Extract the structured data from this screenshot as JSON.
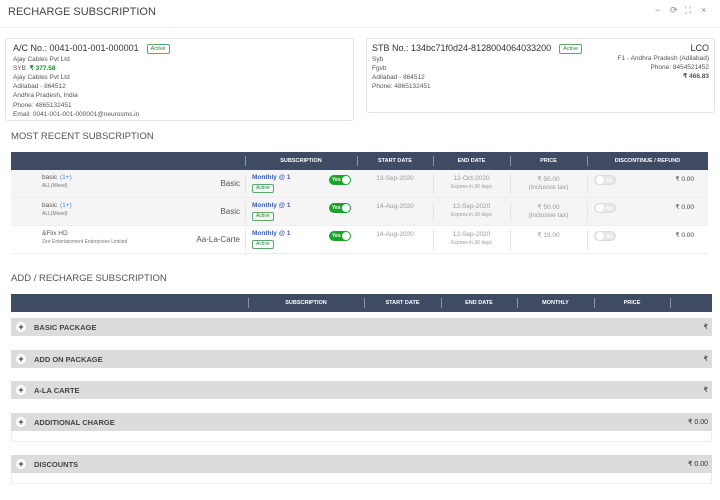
{
  "title": "RECHARGE SUBSCRIPTION",
  "window_controls": {
    "minimize": "−",
    "refresh": "⟳",
    "maximize": "⛶",
    "close": "×"
  },
  "account": {
    "ac_no": "A/C No.: 0041-001-001-000001",
    "status": "Active",
    "name": "Ajay Cables Pvt Ltd",
    "syb_label": "SYB",
    "balance": "₹ 377.58",
    "company": "Ajay Cables Pvt Ltd",
    "city": "Adilabad - 864512",
    "state": "Andhra Pradesh, India",
    "phone": "Phone: 4865132451",
    "email": "Email: 0041-001-001-000001@neurosms.in"
  },
  "stb": {
    "stb_no": "STB No.: 134bc71f0d24-8128004064033200",
    "status": "Active",
    "line1": "Syb",
    "line2": "Fgvb",
    "city": "Adilabad - 864512",
    "phone": "Phone: 4865132451",
    "lco_label": "LCO",
    "lco_name": "F1 - Andhra Pradesh (Adilabad)",
    "lco_phone": "Phone: 8454521452",
    "lco_balance": "₹ 466.83"
  },
  "recent": {
    "heading": "MOST RECENT SUBSCRIPTION",
    "columns": [
      "SUBSCRIPTION",
      "START DATE",
      "END DATE",
      "PRICE",
      "DISCONTINUE / REFUND"
    ],
    "rows": [
      {
        "name": "basic",
        "count": "(1+)",
        "sub": "ALL(Mixed)",
        "type": "Basic",
        "plan": "Monthly @ 1",
        "status": "Active",
        "auto": "Yes",
        "start": "13-Sep-2020",
        "end": "12-Oct-2020",
        "expires": "Expires in 30 days",
        "price": "₹ 50.00",
        "tax": "(inclusive tax)",
        "discontinue": "No",
        "refund": "₹ 0.00"
      },
      {
        "name": "basic",
        "count": "(1+)",
        "sub": "ALL(Mixed)",
        "type": "Basic",
        "plan": "Monthly @ 1",
        "status": "Active",
        "auto": "Yes",
        "start": "14-Aug-2020",
        "end": "12-Sep-2020",
        "expires": "Expires in 30 days",
        "price": "₹ 50.00",
        "tax": "(inclusive tax)",
        "discontinue": "No",
        "refund": "₹ 0.00"
      },
      {
        "name": "&Flix HD",
        "count": "",
        "sub": "Zee Entertainment Enterprises Limited",
        "type": "Aa-La-Carte",
        "plan": "Monthly @ 1",
        "status": "Active",
        "auto": "Yes",
        "start": "14-Aug-2020",
        "end": "12-Sep-2020",
        "expires": "Expires in 30 days",
        "price": "₹ 19.00",
        "tax": "",
        "discontinue": "No",
        "refund": "₹ 0.00"
      }
    ]
  },
  "add": {
    "heading": "ADD / RECHARGE SUBSCRIPTION",
    "columns": [
      "SUBSCRIPTION",
      "START DATE",
      "END DATE",
      "MONTHLY",
      "PRICE"
    ],
    "groups": [
      {
        "label": "BASIC PACKAGE",
        "amount": "₹"
      },
      {
        "label": "ADD ON PACKAGE",
        "amount": "₹"
      },
      {
        "label": "A-LA CARTE",
        "amount": "₹"
      },
      {
        "label": "ADDITIONAL CHARGE",
        "amount": "₹ 0.00"
      },
      {
        "label": "DISCOUNTS",
        "amount": "₹ 0.00"
      }
    ]
  }
}
